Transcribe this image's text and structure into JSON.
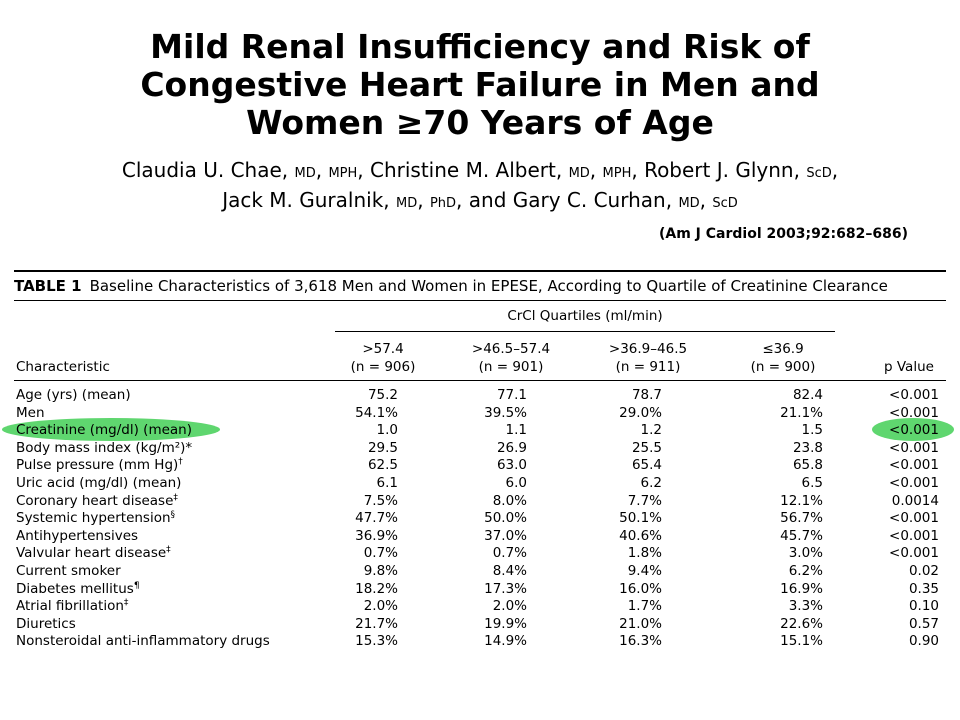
{
  "title": {
    "line1": "Mild Renal Insufficiency and Risk of",
    "line2": "Congestive Heart Failure in Men and",
    "line3": "Women ≥70 Years of Age"
  },
  "authors": {
    "line1": [
      {
        "text": "Claudia U. Chae, "
      },
      {
        "deg": "MD"
      },
      {
        "text": ", "
      },
      {
        "deg": "MPH"
      },
      {
        "text": ", Christine M. Albert, "
      },
      {
        "deg": "MD"
      },
      {
        "text": ", "
      },
      {
        "deg": "MPH"
      },
      {
        "text": ", Robert J. Glynn, "
      },
      {
        "deg": "ScD"
      },
      {
        "text": ","
      }
    ],
    "line2": [
      {
        "text": "Jack M. Guralnik, "
      },
      {
        "deg": "MD"
      },
      {
        "text": ", "
      },
      {
        "deg": "PhD"
      },
      {
        "text": ", and Gary C. Curhan, "
      },
      {
        "deg": "MD"
      },
      {
        "text": ", "
      },
      {
        "deg": "ScD"
      }
    ]
  },
  "citation": "(Am J Cardiol 2003;92:682–686)",
  "table": {
    "label": "TABLE 1",
    "caption": "Baseline Characteristics of 3,618 Men and Women in EPESE, According to Quartile of Creatinine Clearance",
    "group_header": "CrCl Quartiles (ml/min)",
    "characteristic_header": "Characteristic",
    "pvalue_header": "p Value",
    "quartiles": [
      {
        "range": ">57.4",
        "n": "(n = 906)"
      },
      {
        "range": ">46.5–57.4",
        "n": "(n = 901)"
      },
      {
        "range": ">36.9–46.5",
        "n": "(n = 911)"
      },
      {
        "range": "≤36.9",
        "n": "(n = 900)"
      }
    ],
    "rows": [
      {
        "label": "Age (yrs) (mean)",
        "sup": "",
        "values": [
          "75.2",
          "77.1",
          "78.7",
          "82.4"
        ],
        "p": "<0.001"
      },
      {
        "label": "Men",
        "sup": "",
        "values": [
          "54.1%",
          "39.5%",
          "29.0%",
          "21.1%"
        ],
        "p": "<0.001"
      },
      {
        "label": "Creatinine (mg/dl) (mean)",
        "sup": "",
        "values": [
          "1.0",
          "1.1",
          "1.2",
          "1.5"
        ],
        "p": "<0.001"
      },
      {
        "label": "Body mass index (kg/m²)*",
        "sup": "",
        "values": [
          "29.5",
          "26.9",
          "25.5",
          "23.8"
        ],
        "p": "<0.001"
      },
      {
        "label": "Pulse pressure (mm Hg)",
        "sup": "†",
        "values": [
          "62.5",
          "63.0",
          "65.4",
          "65.8"
        ],
        "p": "<0.001"
      },
      {
        "label": "Uric acid (mg/dl) (mean)",
        "sup": "",
        "values": [
          "6.1",
          "6.0",
          "6.2",
          "6.5"
        ],
        "p": "<0.001"
      },
      {
        "label": "Coronary heart disease",
        "sup": "‡",
        "values": [
          "7.5%",
          "8.0%",
          "7.7%",
          "12.1%"
        ],
        "p": "0.0014"
      },
      {
        "label": "Systemic hypertension",
        "sup": "§",
        "values": [
          "47.7%",
          "50.0%",
          "50.1%",
          "56.7%"
        ],
        "p": "<0.001"
      },
      {
        "label": "Antihypertensives",
        "sup": "",
        "values": [
          "36.9%",
          "37.0%",
          "40.6%",
          "45.7%"
        ],
        "p": "<0.001"
      },
      {
        "label": "Valvular heart disease",
        "sup": "‡",
        "values": [
          "0.7%",
          "0.7%",
          "1.8%",
          "3.0%"
        ],
        "p": "<0.001"
      },
      {
        "label": "Current smoker",
        "sup": "",
        "values": [
          "9.8%",
          "8.4%",
          "9.4%",
          "6.2%"
        ],
        "p": "0.02"
      },
      {
        "label": "Diabetes mellitus",
        "sup": "¶",
        "values": [
          "18.2%",
          "17.3%",
          "16.0%",
          "16.9%"
        ],
        "p": "0.35"
      },
      {
        "label": "Atrial fibrillation",
        "sup": "‡",
        "values": [
          "2.0%",
          "2.0%",
          "1.7%",
          "3.3%"
        ],
        "p": "0.10"
      },
      {
        "label": "Diuretics",
        "sup": "",
        "values": [
          "21.7%",
          "19.9%",
          "21.0%",
          "22.6%"
        ],
        "p": "0.57"
      },
      {
        "label": "Nonsteroidal anti-inflammatory drugs",
        "sup": "",
        "values": [
          "15.3%",
          "14.9%",
          "16.3%",
          "15.1%"
        ],
        "p": "0.90"
      }
    ],
    "highlighted_row": "Creatinine (mg/dl) (mean)",
    "highlight_color": "#4ed25f"
  }
}
